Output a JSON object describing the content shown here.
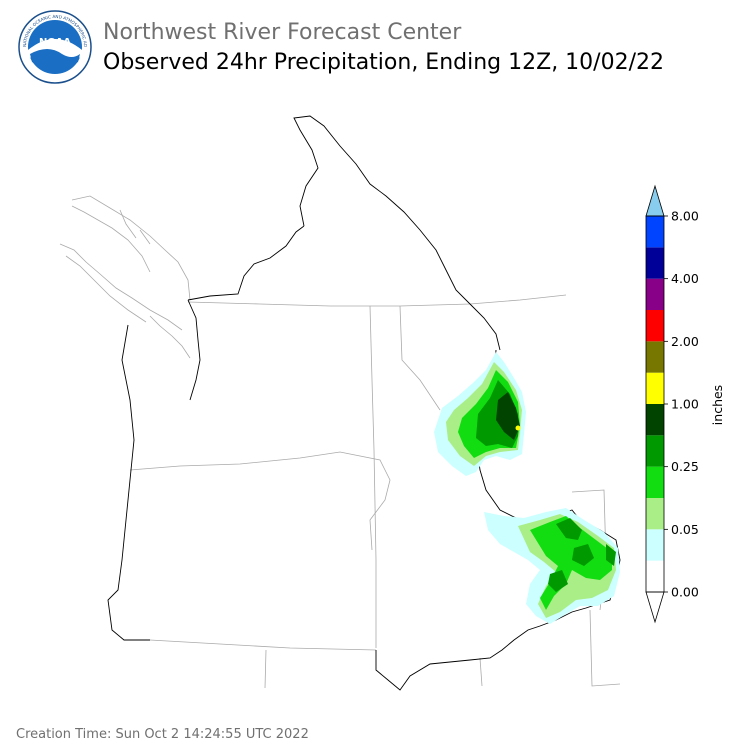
{
  "header": {
    "agency": "Northwest River Forecast Center",
    "title": "Observed 24hr Precipitation, Ending 12Z, 10/02/22",
    "logo_text": "NOAA",
    "logo_ring_text": "NATIONAL OCEANIC AND ATMOSPHERIC ADMINISTRATION · U.S. DEPARTMENT OF COMMERCE"
  },
  "legend": {
    "unit": "inches",
    "tick_labels": [
      "0.00",
      "0.05",
      "0.25",
      "1.00",
      "2.00",
      "4.00",
      "8.00"
    ],
    "colors": [
      "#ffffff",
      "#ccffff",
      "#aaee88",
      "#11dd11",
      "#009900",
      "#004400",
      "#ffff00",
      "#777700",
      "#ff0000",
      "#880088",
      "#000099",
      "#0044ff",
      "#88ccee"
    ]
  },
  "map": {
    "precip_colors": {
      "trace": "#ccffff",
      "light": "#aaee88",
      "moderate": "#11dd11",
      "heavy": "#009900",
      "very_heavy": "#004400",
      "extreme": "#ffff00"
    }
  },
  "footer": {
    "creation_time": "Creation Time: Sun Oct 2 14:24:55 UTC 2022"
  }
}
